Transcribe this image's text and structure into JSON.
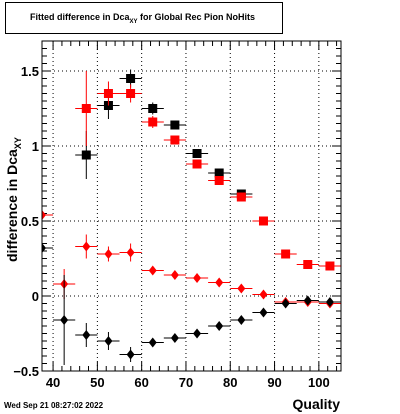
{
  "title": {
    "prefix": "Fitted difference in Dca",
    "subscript": "XY",
    "suffix": " for Global Rec Pion NoHits"
  },
  "ylabel": {
    "main": "difference in Dca",
    "subscript": "XY"
  },
  "xlabel": "Quality",
  "timestamp": "Wed Sep 21 08:27:02 2022",
  "colors": {
    "series_red": "#ff0000",
    "series_black": "#000000",
    "grid": "#000000"
  },
  "chart_data": {
    "type": "scatter",
    "xlim": [
      37.5,
      105
    ],
    "ylim": [
      -0.5,
      1.7
    ],
    "xticks": [
      40,
      50,
      60,
      70,
      80,
      90,
      100
    ],
    "yticks": [
      -0.5,
      0,
      0.5,
      1,
      1.5
    ],
    "ytick_labels": [
      "−0.5",
      "0",
      "0.5",
      "1",
      "1.5"
    ],
    "grid": true,
    "series": [
      {
        "color": "#000000",
        "marker": "square",
        "x": [
          47.5,
          52.5,
          57.5,
          62.5,
          67.5,
          72.5,
          77.5,
          82.5
        ],
        "y": [
          0.94,
          1.27,
          1.45,
          1.25,
          1.14,
          0.95,
          0.82,
          0.68
        ],
        "xerr": [
          2.5,
          2.5,
          2.5,
          2.5,
          2.5,
          2.5,
          2.5,
          2.5
        ],
        "yerr": [
          0.16,
          0.09,
          0.06,
          0.04,
          0.02,
          0.02,
          0.02,
          0.02
        ]
      },
      {
        "color": "#ff0000",
        "marker": "square",
        "x": [
          47.5,
          52.5,
          57.5,
          62.5,
          67.5,
          72.5,
          77.5,
          82.5,
          87.5,
          92.5,
          97.5,
          102.5
        ],
        "y": [
          1.25,
          1.35,
          1.35,
          1.16,
          1.04,
          0.88,
          0.77,
          0.66,
          0.5,
          0.28,
          0.21,
          0.2
        ],
        "xerr": [
          2.5,
          2.5,
          2.5,
          2.5,
          2.5,
          2.5,
          2.5,
          2.5,
          2.5,
          2.5,
          2.5,
          2.5
        ],
        "yerr": [
          0.25,
          0.08,
          0.06,
          0.04,
          0.03,
          0.02,
          0.02,
          0.02,
          0.01,
          0.01,
          0.01,
          0.01
        ]
      },
      {
        "color": "#ff0000",
        "marker": "diamond",
        "x": [
          37.5,
          42.5,
          47.5,
          52.5,
          57.5,
          62.5,
          67.5,
          72.5,
          77.5,
          82.5,
          87.5,
          92.5,
          97.5,
          102.5
        ],
        "y": [
          0.54,
          0.08,
          0.33,
          0.28,
          0.29,
          0.17,
          0.14,
          0.12,
          0.09,
          0.05,
          0.01,
          -0.04,
          -0.04,
          -0.05
        ],
        "xerr": [
          2.5,
          2.5,
          2.5,
          2.5,
          2.5,
          2.5,
          2.5,
          2.5,
          2.5,
          2.5,
          2.5,
          2.5,
          2.5,
          2.5
        ],
        "yerr": [
          0.6,
          0.1,
          0.08,
          0.05,
          0.06,
          0.02,
          0.02,
          0.01,
          0.01,
          0.01,
          0.01,
          0.01,
          0.01,
          0.01
        ]
      },
      {
        "color": "#000000",
        "marker": "diamond",
        "x": [
          37.5,
          42.5,
          47.5,
          52.5,
          57.5,
          62.5,
          67.5,
          72.5,
          77.5,
          82.5,
          87.5,
          92.5,
          97.5,
          102.5
        ],
        "y": [
          0.32,
          -0.16,
          -0.26,
          -0.3,
          -0.39,
          -0.31,
          -0.28,
          -0.25,
          -0.2,
          -0.16,
          -0.11,
          -0.05,
          -0.03,
          -0.04
        ],
        "xerr": [
          2.5,
          2.5,
          2.5,
          2.5,
          2.5,
          2.5,
          2.5,
          2.5,
          2.5,
          2.5,
          2.5,
          2.5,
          2.5,
          2.5
        ],
        "yerr": [
          0.7,
          0.3,
          0.08,
          0.06,
          0.05,
          0.02,
          0.02,
          0.02,
          0.02,
          0.01,
          0.01,
          0.01,
          0.01,
          0.01
        ]
      }
    ]
  }
}
